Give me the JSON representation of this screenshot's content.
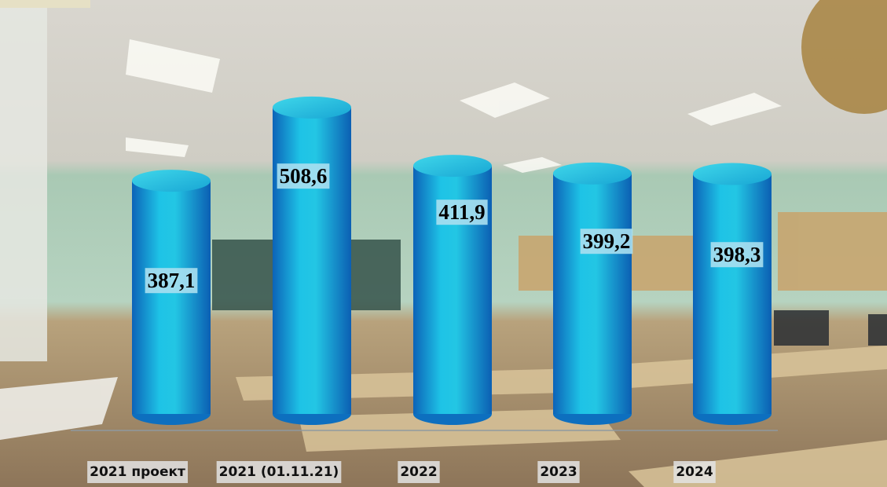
{
  "chart_data": {
    "type": "bar",
    "categories": [
      "2021 проект",
      "2021 (01.11.21)",
      "2022",
      "2023",
      "2024"
    ],
    "values": [
      387.1,
      508.6,
      411.9,
      399.2,
      398.3
    ],
    "value_labels": [
      "387,1",
      "508,6",
      "411,9",
      "399,2",
      "398,3"
    ],
    "color": "#14a9d6"
  }
}
